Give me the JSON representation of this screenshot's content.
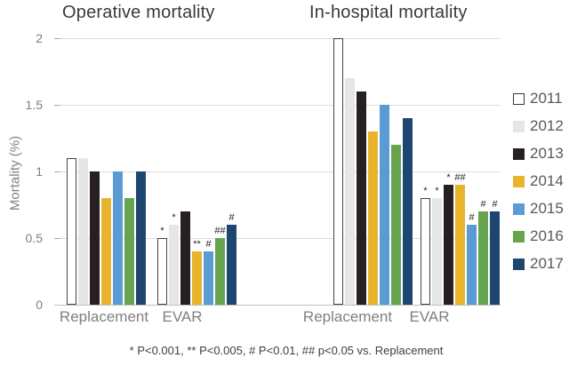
{
  "figure": {
    "y_axis_label": "Mortality (%)",
    "footnote": "* P<0.001, ** P<0.005, # P<0.01, ## p<0.05 vs. Replacement"
  },
  "chart_data": {
    "type": "bar",
    "ylabel": "Mortality (%)",
    "ylim": [
      0,
      2
    ],
    "ytick_values": [
      0,
      0.5,
      1,
      1.5,
      2
    ],
    "ytick_labels": [
      "0",
      "0.5",
      "1",
      "1.5",
      "2"
    ],
    "grid": true,
    "legend_position": "right",
    "series_names": [
      "2011",
      "2012",
      "2013",
      "2014",
      "2015",
      "2016",
      "2017"
    ],
    "series_colors": [
      "#ffffff",
      "#e7e6e6",
      "#262120",
      "#e8b42e",
      "#5b9bd5",
      "#66a44f",
      "#1f4571"
    ],
    "open_bar_border_color": "#474342",
    "panels": [
      {
        "title": "Operative mortality",
        "groups": [
          {
            "category": "Replacement",
            "values": [
              1.1,
              1.1,
              1.0,
              0.8,
              1.0,
              0.8,
              1.0
            ],
            "sig_markers": [
              "",
              "",
              "",
              "",
              "",
              "",
              ""
            ]
          },
          {
            "category": "EVAR",
            "values": [
              0.5,
              0.6,
              0.7,
              0.4,
              0.4,
              0.5,
              0.6
            ],
            "sig_markers": [
              "*",
              "*",
              "",
              "**",
              "#",
              "##",
              "#"
            ]
          }
        ]
      },
      {
        "title": "In-hospital mortality",
        "groups": [
          {
            "category": "Replacement",
            "values": [
              2.0,
              1.7,
              1.6,
              1.3,
              1.5,
              1.2,
              1.4
            ],
            "sig_markers": [
              "",
              "",
              "",
              "",
              "",
              "",
              ""
            ]
          },
          {
            "category": "EVAR",
            "values": [
              0.8,
              0.8,
              0.9,
              0.9,
              0.6,
              0.7,
              0.7
            ],
            "sig_markers": [
              "*",
              "*",
              "*",
              "##",
              "#",
              "#",
              "#"
            ]
          }
        ]
      }
    ],
    "footnote": "* P<0.001, ** P<0.005, # P<0.01, ## p<0.05 vs. Replacement"
  }
}
